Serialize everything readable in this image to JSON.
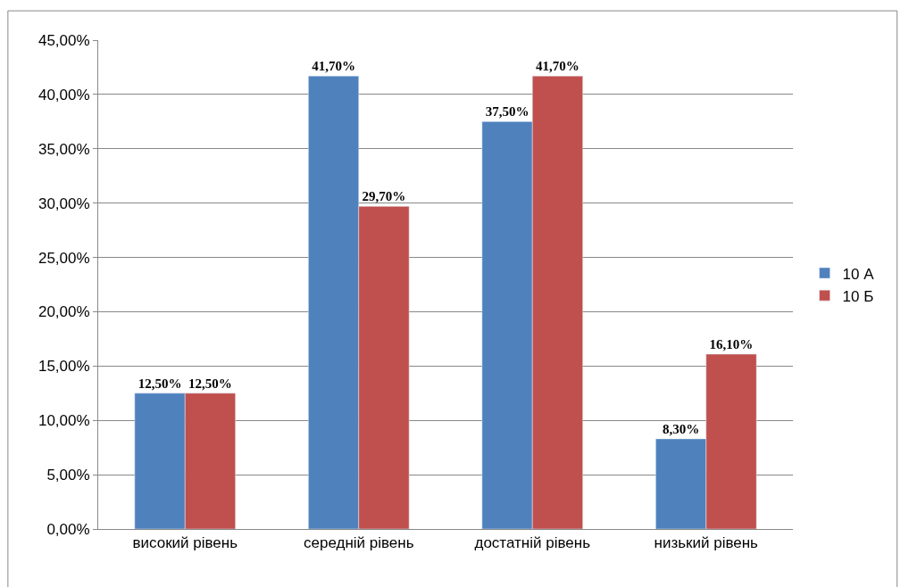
{
  "chart_data": {
    "type": "bar",
    "categories": [
      "високий рівень",
      "середній рівень",
      "достатній рівень",
      "низький рівень"
    ],
    "series": [
      {
        "name": "10 А",
        "color": "#4f81bd",
        "values": [
          12.5,
          41.7,
          37.5,
          8.3
        ],
        "value_labels": [
          "12,50%",
          "41,70%",
          "37,50%",
          "8,30%"
        ]
      },
      {
        "name": "10 Б",
        "color": "#c0504d",
        "values": [
          12.5,
          29.7,
          41.7,
          16.1
        ],
        "value_labels": [
          "12,50%",
          "29,70%",
          "41,70%",
          "16,10%"
        ]
      }
    ],
    "ylim": [
      0,
      45
    ],
    "yticks": [
      {
        "value": 0,
        "label": "0,00%"
      },
      {
        "value": 5,
        "label": "5,00%"
      },
      {
        "value": 10,
        "label": "10,00%"
      },
      {
        "value": 15,
        "label": "15,00%"
      },
      {
        "value": 20,
        "label": "20,00%"
      },
      {
        "value": 25,
        "label": "25,00%"
      },
      {
        "value": 30,
        "label": "30,00%"
      },
      {
        "value": 35,
        "label": "35,00%"
      },
      {
        "value": 40,
        "label": "40,00%"
      },
      {
        "value": 45,
        "label": "45,00%"
      }
    ],
    "grid": "y",
    "legend": "right"
  }
}
